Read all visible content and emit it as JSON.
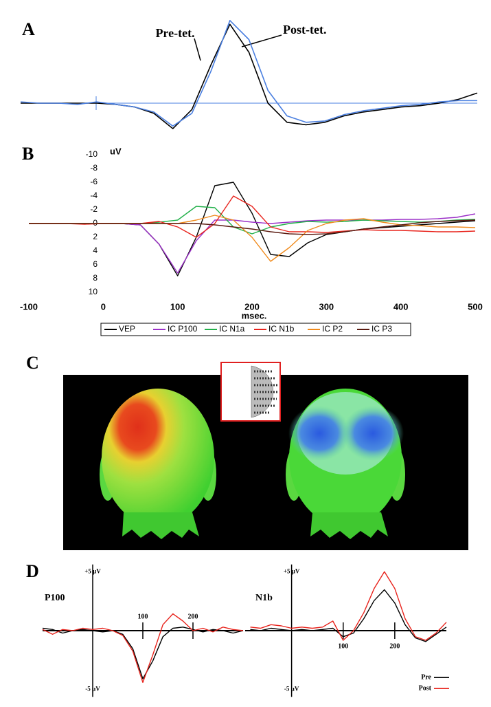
{
  "panel_c": {
    "label": "C"
  },
  "chart_data": [
    {
      "type": "line",
      "label": "A",
      "annotations": [
        "Pre-tet.",
        "Post-tet."
      ],
      "categories": [
        null,
        null,
        null,
        null,
        null,
        null,
        null,
        null,
        null,
        null,
        null,
        null,
        null,
        null,
        null,
        null,
        null,
        null,
        null,
        null,
        null,
        null,
        null,
        null,
        null
      ],
      "ylim": [
        -3,
        7
      ],
      "series": [
        {
          "name": "Pre-tet.",
          "color": "#000000",
          "values": [
            0,
            0,
            0,
            0,
            0,
            -0.1,
            -0.3,
            -0.8,
            -2,
            -0.5,
            3,
            6.2,
            4,
            0,
            -1.5,
            -1.7,
            -1.5,
            -1,
            -0.7,
            -0.5,
            -0.3,
            -0.2,
            0,
            0.3,
            0.8
          ]
        },
        {
          "name": "Post-tet.",
          "color": "#4a7fe0",
          "values": [
            0.1,
            0,
            0,
            -0.1,
            0.1,
            -0.1,
            -0.3,
            -0.7,
            -1.8,
            -0.8,
            2.5,
            6.5,
            5,
            1,
            -1,
            -1.5,
            -1.4,
            -0.9,
            -0.6,
            -0.4,
            -0.2,
            -0.1,
            0.1,
            0.2,
            0.2
          ]
        }
      ]
    },
    {
      "type": "line",
      "label": "B",
      "ylabel": "uV",
      "xlabel": "msec.",
      "x": [
        -100,
        -75,
        -50,
        -25,
        0,
        25,
        50,
        75,
        100,
        125,
        150,
        175,
        200,
        225,
        250,
        275,
        300,
        325,
        350,
        375,
        400,
        425,
        450,
        475,
        500
      ],
      "xlim": [
        -100,
        500
      ],
      "xticks": [
        -100,
        0,
        100,
        200,
        300,
        400,
        500
      ],
      "ylim": [
        10,
        -10
      ],
      "yticks": [
        -10,
        -8,
        -6,
        -4,
        -2,
        0,
        2,
        4,
        6,
        8,
        10
      ],
      "series": [
        {
          "name": "VEP",
          "color": "#000000",
          "values": [
            0,
            0,
            0,
            0,
            0,
            0,
            0.2,
            3,
            7.6,
            2,
            -5.5,
            -6,
            -1.5,
            4.5,
            4.8,
            2.8,
            1.6,
            1.2,
            0.8,
            0.6,
            0.4,
            0.2,
            0,
            -0.2,
            -0.4
          ]
        },
        {
          "name": "IC P100",
          "color": "#9b30c8",
          "values": [
            0,
            0,
            0,
            0,
            0,
            0,
            0.2,
            3,
            7.2,
            2.5,
            -0.5,
            -0.5,
            -0.2,
            0,
            -0.2,
            -0.4,
            -0.5,
            -0.5,
            -0.5,
            -0.5,
            -0.6,
            -0.6,
            -0.7,
            -0.9,
            -1.4
          ]
        },
        {
          "name": "IC N1a",
          "color": "#22b04a",
          "values": [
            0,
            0,
            0,
            0,
            0,
            0,
            0,
            -0.2,
            -0.5,
            -2.5,
            -2.3,
            0.5,
            1.5,
            0.5,
            0,
            -0.3,
            -0.2,
            -0.3,
            -0.5,
            -0.4,
            -0.3,
            -0.2,
            -0.3,
            -0.5,
            -0.6
          ]
        },
        {
          "name": "IC N1b",
          "color": "#e8231c",
          "values": [
            0,
            0,
            0,
            0.1,
            0,
            0,
            0,
            -0.3,
            0.5,
            2,
            0,
            -4,
            -2.5,
            0.5,
            1.2,
            1.2,
            1.3,
            1.1,
            0.9,
            1,
            1,
            1.1,
            1.2,
            1.2,
            1.1
          ]
        },
        {
          "name": "IC P2",
          "color": "#f08a1c",
          "values": [
            0,
            0,
            0,
            0,
            0,
            0,
            0,
            0,
            0,
            -0.5,
            -1.2,
            -0.5,
            2,
            5.5,
            3.5,
            1,
            0,
            -0.5,
            -0.7,
            -0.2,
            0.2,
            0.3,
            0.5,
            0.5,
            0.6
          ]
        },
        {
          "name": "IC P3",
          "color": "#5a1a10",
          "values": [
            0,
            0,
            0,
            0,
            0,
            0,
            0,
            0,
            0,
            0,
            0.2,
            0.5,
            0.8,
            1.2,
            1.5,
            1.6,
            1.5,
            1.2,
            0.8,
            0.5,
            0.2,
            -0.1,
            -0.3,
            -0.4,
            -0.5
          ]
        }
      ]
    },
    {
      "type": "line",
      "label": "D",
      "title": "P100",
      "x": [
        -100,
        -80,
        -60,
        -40,
        -20,
        0,
        20,
        40,
        60,
        80,
        100,
        120,
        140,
        160,
        180,
        200,
        220,
        240,
        260,
        280,
        300
      ],
      "xlim": [
        -100,
        300
      ],
      "xticks": [
        100,
        200
      ],
      "ylim": [
        -5.5,
        5.5
      ],
      "yticks": [
        {
          "value": 5,
          "label": "+5 µV"
        },
        {
          "value": -5,
          "label": "-5 µV"
        }
      ],
      "series": [
        {
          "color": "#000000",
          "values": [
            0.2,
            0.1,
            -0.2,
            0,
            0.1,
            0,
            -0.1,
            0,
            -0.3,
            -1.5,
            -4,
            -2.5,
            -0.5,
            0.2,
            0.3,
            0.1,
            -0.1,
            0.1,
            0,
            -0.2,
            0
          ]
        },
        {
          "color": "#e8231c",
          "values": [
            0.1,
            -0.3,
            0.1,
            0,
            0.2,
            0.1,
            0.2,
            0,
            -0.4,
            -1.7,
            -4.3,
            -2,
            0.5,
            1.4,
            0.8,
            0,
            0.2,
            -0.1,
            0.3,
            0.1,
            0
          ]
        }
      ]
    },
    {
      "type": "line",
      "title": "N1b",
      "x": [
        -80,
        -60,
        -40,
        -20,
        0,
        20,
        40,
        60,
        80,
        100,
        120,
        140,
        160,
        180,
        200,
        220,
        240,
        260,
        280,
        300
      ],
      "xlim": [
        -90,
        300
      ],
      "xticks": [
        100,
        200
      ],
      "ylim": [
        -5.5,
        5.5
      ],
      "yticks": [
        {
          "value": 5,
          "label": "+5 µV"
        },
        {
          "value": -5,
          "label": "-5 µV"
        }
      ],
      "series": [
        {
          "name": "Pre",
          "color": "#000000",
          "values": [
            0.1,
            0,
            0.2,
            0.1,
            0,
            0.1,
            0,
            0.1,
            0.2,
            -0.5,
            -0.2,
            1,
            2.5,
            3.4,
            2.3,
            0.5,
            -0.6,
            -0.9,
            -0.3,
            0.3
          ]
        },
        {
          "name": "Post",
          "color": "#e8231c",
          "values": [
            0.3,
            0.2,
            0.5,
            0.4,
            0.2,
            0.3,
            0.2,
            0.3,
            0.8,
            -0.8,
            0,
            1.5,
            3.5,
            4.9,
            3.5,
            1,
            -0.5,
            -0.8,
            -0.2,
            0.7
          ]
        }
      ]
    }
  ]
}
